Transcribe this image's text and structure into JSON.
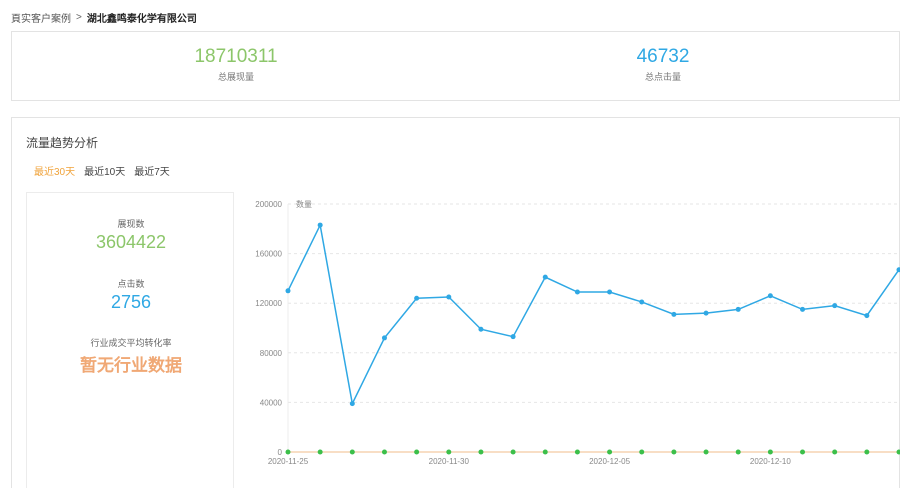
{
  "breadcrumb": {
    "parent": "頁实客户案例",
    "separator": ">",
    "current": "湖北鑫鸣泰化学有限公司"
  },
  "summary": {
    "impressions_value": "18710311",
    "impressions_label": "总展现量",
    "clicks_value": "46732",
    "clicks_label": "总点击量"
  },
  "trend": {
    "title": "流量趋势分析",
    "tabs": [
      {
        "label": "最近30天",
        "active": true
      },
      {
        "label": "最近10天",
        "active": false
      },
      {
        "label": "最近7天",
        "active": false
      }
    ],
    "panel": {
      "impressions_label": "展现数",
      "impressions_value": "3604422",
      "clicks_label": "点击数",
      "clicks_value": "2756",
      "conversion_label": "行业成交平均转化率",
      "conversion_value": "暂无行业数据"
    }
  },
  "colors": {
    "impressions": "#2fa8e4",
    "clicks": "#3cbf4a",
    "accent": "#f0a33b"
  },
  "chart_data": {
    "type": "line",
    "ylabel": "数量",
    "ylim": [
      0,
      200000
    ],
    "yticks": [
      0,
      40000,
      80000,
      120000,
      160000,
      200000
    ],
    "x_tick_labels": [
      {
        "index": 0,
        "label": "2020-11-25"
      },
      {
        "index": 5,
        "label": "2020-11-30"
      },
      {
        "index": 10,
        "label": "2020-12-05"
      },
      {
        "index": 15,
        "label": "2020-12-10"
      }
    ],
    "series": [
      {
        "values": [
          130000,
          183000,
          39000,
          92000,
          124000,
          125000,
          99000,
          93000,
          141000,
          129000,
          129000,
          121000,
          111000,
          112000,
          115000,
          126000,
          115000,
          118000,
          110000,
          147000
        ]
      },
      {
        "values": [
          0,
          0,
          0,
          0,
          0,
          0,
          0,
          0,
          0,
          0,
          0,
          0,
          0,
          0,
          0,
          0,
          0,
          0,
          0,
          0
        ]
      }
    ]
  }
}
